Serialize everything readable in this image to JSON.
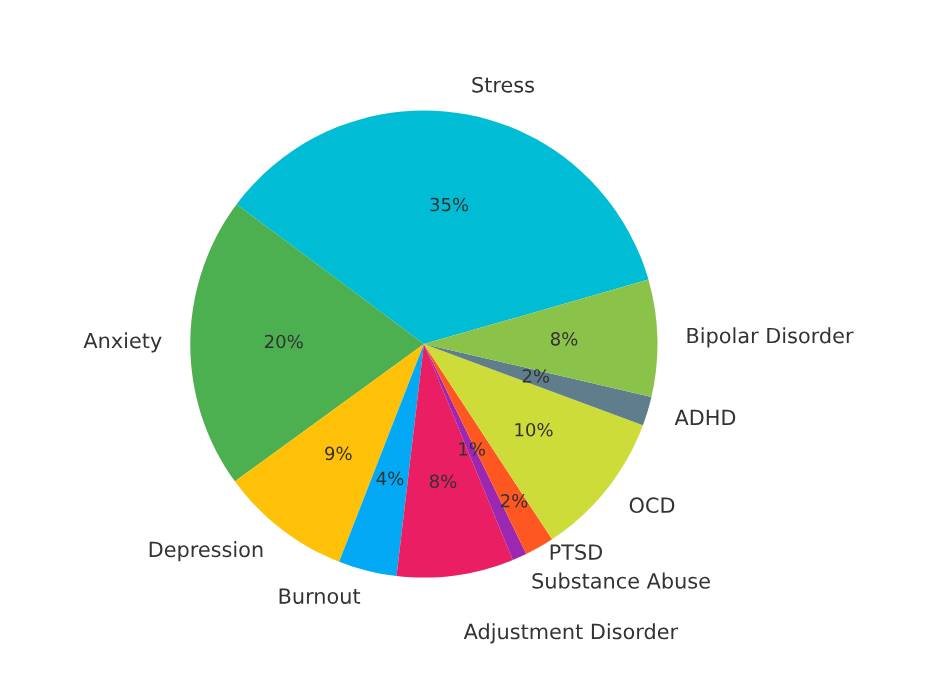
{
  "chart_data": {
    "type": "pie",
    "categories": [
      "Stress",
      "Anxiety",
      "Depression",
      "Burnout",
      "Adjustment Disorder",
      "Substance Abuse",
      "PTSD",
      "OCD",
      "ADHD",
      "Bipolar Disorder"
    ],
    "values": [
      35,
      20,
      9,
      4,
      8,
      1,
      2,
      10,
      2,
      8
    ],
    "value_labels": [
      "35%",
      "20%",
      "9%",
      "4%",
      "8%",
      "1%",
      "2%",
      "10%",
      "2%",
      "8%"
    ],
    "colors": [
      "#00bcd4",
      "#4caf50",
      "#ffc107",
      "#03a9f4",
      "#e91e63",
      "#9c27b0",
      "#ff5722",
      "#cddc39",
      "#607d8b",
      "#8bc34a"
    ]
  }
}
